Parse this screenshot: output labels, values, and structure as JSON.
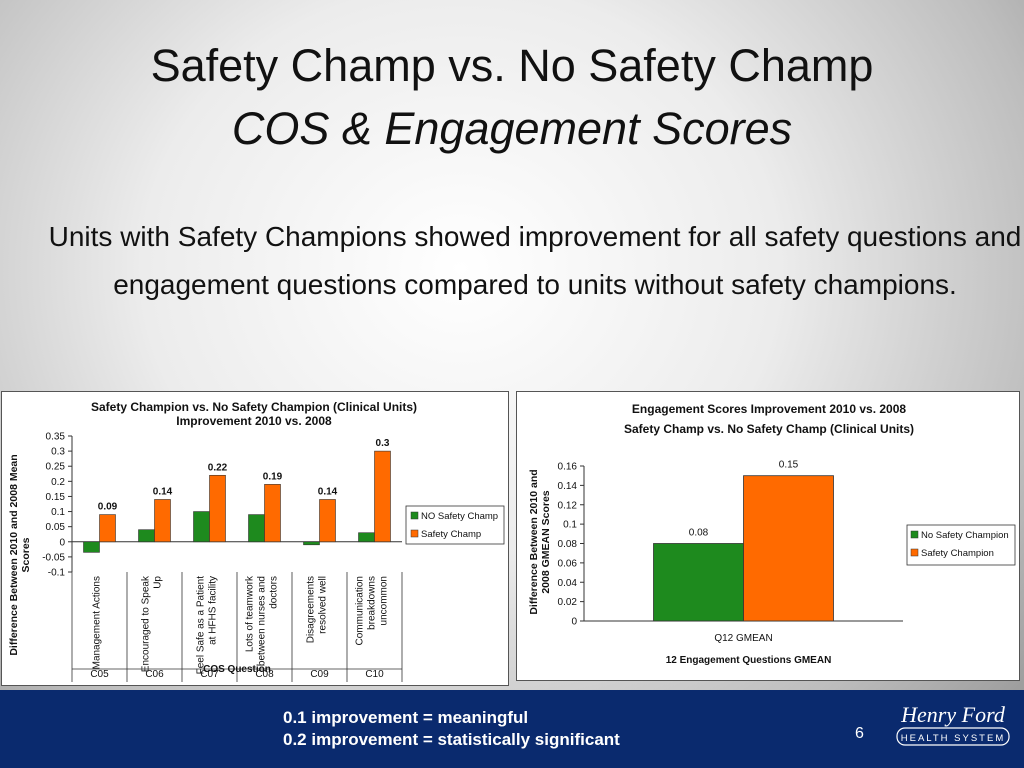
{
  "slide": {
    "title": "Safety Champ vs. No Safety Champ",
    "subtitle": "COS & Engagement Scores",
    "body": "Units with Safety Champions showed improvement for all safety questions and engagement questions compared to units without safety champions.",
    "footer_line1": "0.1 improvement = meaningful",
    "footer_line2": "0.2 improvement = statistically significant",
    "page_number": "6",
    "logo_script": "Henry Ford",
    "logo_caps": "HEALTH SYSTEM"
  },
  "colors": {
    "no_champ": "#1e8a1e",
    "champ": "#ff6a00",
    "footer": "#0a2a6e"
  },
  "chart_data": [
    {
      "type": "bar",
      "title": "Safety Champion vs. No Safety Champion (Clinical Units) Improvement 2010 vs. 2008",
      "title_lines": [
        "Safety Champion vs. No Safety Champion (Clinical Units)",
        "Improvement 2010 vs. 2008"
      ],
      "ylabel": "Difference Between 2010 and 2008 Mean Scores",
      "ylabel_lines": [
        "Difference Between 2010 and 2008 Mean",
        "Scores"
      ],
      "xlabel": "COS Question",
      "categories": [
        "Management Actions",
        "Encouraged to Speak Up",
        "Feel Safe as a Patient at HFHS facility",
        "Lots of teamwork between nurses and doctors",
        "Disagreements resolved well",
        "Communication breakdowns uncommon"
      ],
      "category_lines": [
        [
          "Management Actions"
        ],
        [
          "Encouraged to Speak",
          "Up"
        ],
        [
          "Feel Safe as a Patient",
          "at HFHS facility"
        ],
        [
          "Lots of teamwork",
          "between nurses and",
          "doctors"
        ],
        [
          "Disagreements",
          "resolved well"
        ],
        [
          "Communication",
          "breakdowns",
          "uncommon"
        ]
      ],
      "codes": [
        "C05",
        "C06",
        "C07",
        "C08",
        "C09",
        "C10"
      ],
      "series": [
        {
          "name": "NO Safety Champ",
          "values": [
            -0.035,
            0.04,
            0.1,
            0.09,
            -0.01,
            0.03
          ]
        },
        {
          "name": "Safety Champ",
          "values": [
            0.09,
            0.14,
            0.22,
            0.19,
            0.14,
            0.3
          ]
        }
      ],
      "data_labels": [
        "0.09",
        "0.14",
        "0.22",
        "0.19",
        "0.14",
        "0.3"
      ],
      "ylim": [
        -0.1,
        0.35
      ],
      "yticks": [
        -0.1,
        -0.05,
        0,
        0.05,
        0.1,
        0.15,
        0.2,
        0.25,
        0.3,
        0.35
      ],
      "ytick_labels": [
        "-0.1",
        "-0.05",
        "0",
        "0.05",
        "0.1",
        "0.15",
        "0.2",
        "0.25",
        "0.3",
        "0.35"
      ],
      "legend_position": "right",
      "grid": false
    },
    {
      "type": "bar",
      "title": "Engagement Scores Improvement 2010 vs. 2008 Safety Champ vs. No Safety Champ (Clinical Units)",
      "title_lines": [
        "Engagement Scores Improvement 2010 vs. 2008",
        "Safety Champ vs. No Safety Champ (Clinical Units)"
      ],
      "ylabel": "Difference Between 2010 and 2008 GMEAN Scores",
      "ylabel_lines": [
        "Difference Between 2010 and",
        "2008 GMEAN Scores"
      ],
      "xlabel": "12 Engagement Questions GMEAN",
      "categories": [
        "Q12 GMEAN"
      ],
      "series": [
        {
          "name": "No Safety Champion",
          "values": [
            0.08
          ]
        },
        {
          "name": "Safety Champion",
          "values": [
            0.15
          ]
        }
      ],
      "data_labels": [
        "0.08",
        "0.15"
      ],
      "ylim": [
        0,
        0.16
      ],
      "yticks": [
        0,
        0.02,
        0.04,
        0.06,
        0.08,
        0.1,
        0.12,
        0.14,
        0.16
      ],
      "ytick_labels": [
        "0",
        "0.02",
        "0.04",
        "0.06",
        "0.08",
        "0.1",
        "0.12",
        "0.14",
        "0.16"
      ],
      "legend_position": "right",
      "grid": false
    }
  ]
}
